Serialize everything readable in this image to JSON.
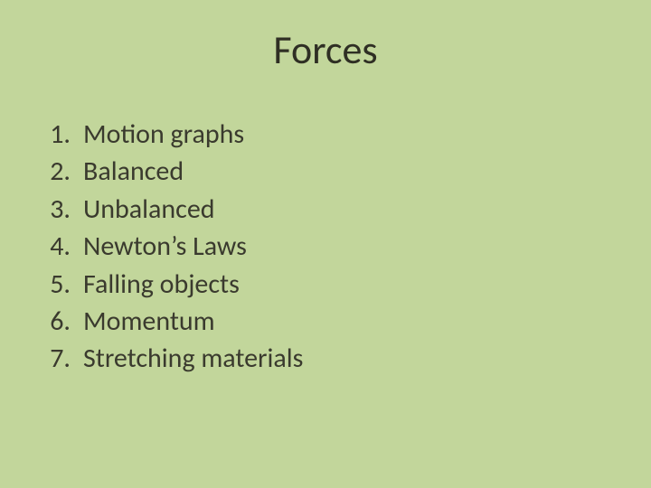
{
  "title": "Forces",
  "items": [
    {
      "n": "1.",
      "label": "Motion graphs"
    },
    {
      "n": "2.",
      "label": "Balanced"
    },
    {
      "n": "3.",
      "label": "Unbalanced"
    },
    {
      "n": "4.",
      "label": "Newton’s Laws"
    },
    {
      "n": "5.",
      "label": "Falling objects"
    },
    {
      "n": "6.",
      "label": "Momentum"
    },
    {
      "n": "7.",
      "label": "Stretching materials"
    }
  ],
  "colors": {
    "background": "#c2d69b",
    "text": "#2f2f24"
  },
  "typography": {
    "title_fontsize_pt": 33,
    "item_fontsize_pt": 22,
    "font_family": "Calibri"
  }
}
